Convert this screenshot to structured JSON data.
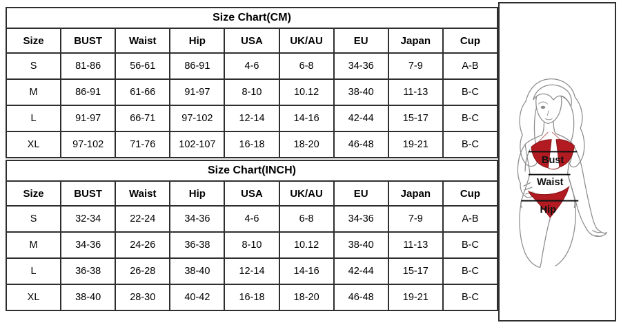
{
  "tables": [
    {
      "title": "Size Chart(CM)",
      "columns": [
        "Size",
        "BUST",
        "Waist",
        "Hip",
        "USA",
        "UK/AU",
        "EU",
        "Japan",
        "Cup"
      ],
      "rows": [
        [
          "S",
          "81-86",
          "56-61",
          "86-91",
          "4-6",
          "6-8",
          "34-36",
          "7-9",
          "A-B"
        ],
        [
          "M",
          "86-91",
          "61-66",
          "91-97",
          "8-10",
          "10.12",
          "38-40",
          "11-13",
          "B-C"
        ],
        [
          "L",
          "91-97",
          "66-71",
          "97-102",
          "12-14",
          "14-16",
          "42-44",
          "15-17",
          "B-C"
        ],
        [
          "XL",
          "97-102",
          "71-76",
          "102-107",
          "16-18",
          "18-20",
          "46-48",
          "19-21",
          "B-C"
        ]
      ]
    },
    {
      "title": "Size Chart(INCH)",
      "columns": [
        "Size",
        "BUST",
        "Waist",
        "Hip",
        "USA",
        "UK/AU",
        "EU",
        "Japan",
        "Cup"
      ],
      "rows": [
        [
          "S",
          "32-34",
          "22-24",
          "34-36",
          "4-6",
          "6-8",
          "34-36",
          "7-9",
          "A-B"
        ],
        [
          "M",
          "34-36",
          "24-26",
          "36-38",
          "8-10",
          "10.12",
          "38-40",
          "11-13",
          "B-C"
        ],
        [
          "L",
          "36-38",
          "26-28",
          "38-40",
          "12-14",
          "14-16",
          "42-44",
          "15-17",
          "B-C"
        ],
        [
          "XL",
          "38-40",
          "28-30",
          "40-42",
          "16-18",
          "18-20",
          "46-48",
          "19-21",
          "B-C"
        ]
      ]
    }
  ],
  "figure": {
    "labels": {
      "bust": "Bust",
      "waist": "Waist",
      "hip": "Hip"
    },
    "colors": {
      "bikini_red": "#b11b21",
      "bikini_outline": "#8c1418",
      "line_black": "#111111",
      "sketch_gray": "#8d8d8d",
      "border": "#2e2e2e"
    }
  }
}
